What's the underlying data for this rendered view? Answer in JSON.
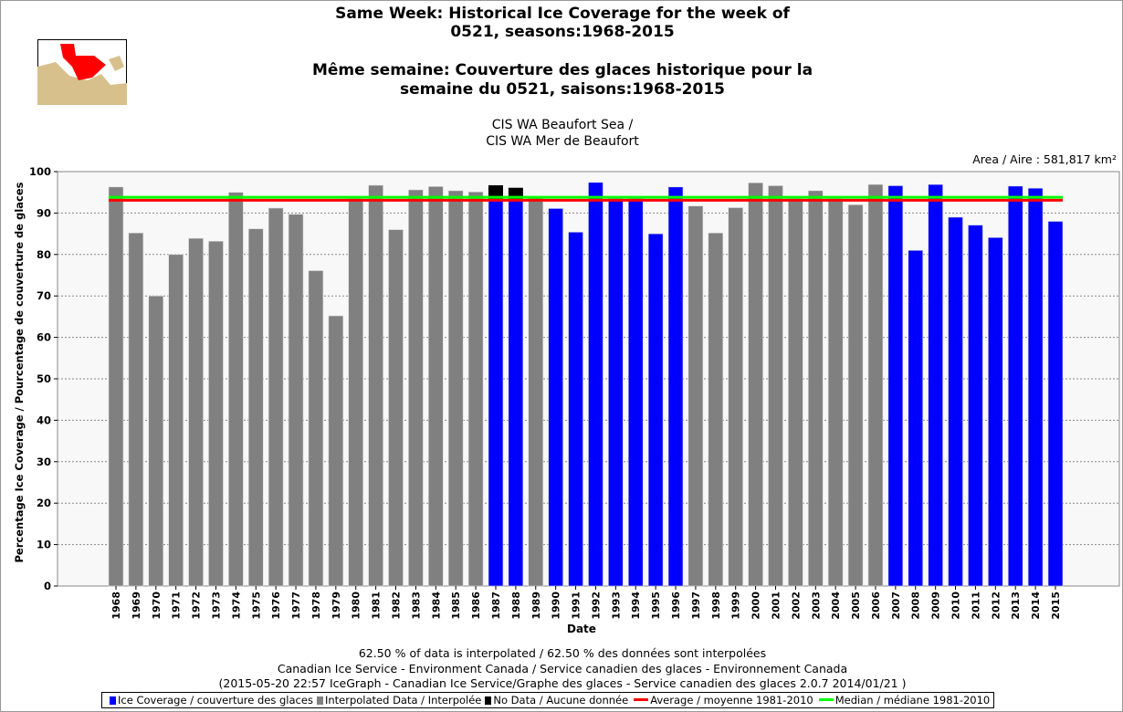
{
  "header": {
    "title_en_1": "Same Week: Historical Ice Coverage for the week of",
    "title_en_2": "0521, seasons:1968-2015",
    "title_fr_1": "Même semaine: Couverture des glaces historique pour la",
    "title_fr_2": "semaine du 0521, saisons:1968-2015",
    "region_1": "CIS WA Beaufort Sea /",
    "region_2": "CIS WA Mer de Beaufort",
    "area": "Area / Aire : 581,817 km²"
  },
  "footer": {
    "interp": "62.50 % of data is interpolated / 62.50 % des données sont interpolées",
    "credit": "Canadian Ice Service - Environment Canada / Service canadien des glaces - Environnement Canada",
    "version": "(2015-05-20 22:57 IceGraph - Canadian Ice Service/Graphe des glaces - Service canadien des glaces 2.0.7 2014/01/21 )"
  },
  "legend": [
    {
      "label": "Ice Coverage / couverture des glaces",
      "color": "#0000ff",
      "kind": "box"
    },
    {
      "label": "Interpolated Data / Interpolée",
      "color": "#808080",
      "kind": "box"
    },
    {
      "label": "No Data / Aucune donnée",
      "color": "#000000",
      "kind": "box"
    },
    {
      "label": "Average / moyenne 1981-2010",
      "color": "#ff0000",
      "kind": "line"
    },
    {
      "label": "Median / médiane 1981-2010",
      "color": "#00ff00",
      "kind": "line"
    }
  ],
  "chart_data": {
    "type": "bar",
    "xlabel": "Date",
    "ylabel": "Percentage Ice Coverage / Pourcentage de couverture de glaces",
    "ylim": [
      0,
      100
    ],
    "yticks": [
      0,
      10,
      20,
      30,
      40,
      50,
      60,
      70,
      80,
      90,
      100
    ],
    "grid": true,
    "legend_placement": "bottom",
    "categories": [
      "1968",
      "1969",
      "1970",
      "1971",
      "1972",
      "1973",
      "1974",
      "1975",
      "1976",
      "1977",
      "1978",
      "1979",
      "1980",
      "1981",
      "1982",
      "1983",
      "1984",
      "1985",
      "1986",
      "1987",
      "1988",
      "1989",
      "1990",
      "1991",
      "1992",
      "1993",
      "1994",
      "1995",
      "1996",
      "1997",
      "1998",
      "1999",
      "2000",
      "2001",
      "2002",
      "2003",
      "2004",
      "2005",
      "2006",
      "2007",
      "2008",
      "2009",
      "2010",
      "2011",
      "2012",
      "2013",
      "2014",
      "2015"
    ],
    "values": [
      96.3,
      85.2,
      70.0,
      80.0,
      83.9,
      83.2,
      95.0,
      86.2,
      91.2,
      89.7,
      76.1,
      65.2,
      93.5,
      96.7,
      86.0,
      95.6,
      96.4,
      95.4,
      95.1,
      93.2,
      93.2,
      93.8,
      91.1,
      85.4,
      97.4,
      93.5,
      93.5,
      85.0,
      96.3,
      91.7,
      85.2,
      91.3,
      97.3,
      96.6,
      93.5,
      95.4,
      93.5,
      92.0,
      96.9,
      96.6,
      81.0,
      96.9,
      89.0,
      87.1,
      84.1,
      96.5,
      96.0,
      88.0
    ],
    "types": [
      "i",
      "i",
      "i",
      "i",
      "i",
      "i",
      "i",
      "i",
      "i",
      "i",
      "i",
      "i",
      "i",
      "i",
      "i",
      "i",
      "i",
      "i",
      "i",
      "c",
      "c",
      "i",
      "c",
      "c",
      "c",
      "c",
      "c",
      "c",
      "c",
      "i",
      "i",
      "i",
      "i",
      "i",
      "i",
      "i",
      "i",
      "i",
      "i",
      "c",
      "c",
      "c",
      "c",
      "c",
      "c",
      "c",
      "c",
      "c"
    ],
    "no_data_top": {
      "1987": 96.7,
      "1988": 96.1
    },
    "average": 93.1,
    "median": 93.8
  }
}
